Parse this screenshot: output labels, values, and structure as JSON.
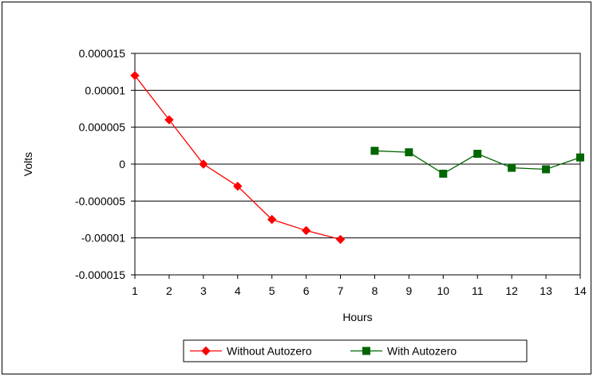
{
  "chart_data": {
    "type": "line",
    "title": "",
    "xlabel": "Hours",
    "ylabel": "Volts",
    "xlim": [
      1,
      14
    ],
    "ylim": [
      -1.5e-05,
      1.5e-05
    ],
    "x_ticks": [
      "1",
      "2",
      "3",
      "4",
      "5",
      "6",
      "7",
      "8",
      "9",
      "10",
      "11",
      "12",
      "13",
      "14"
    ],
    "y_ticks": [
      {
        "value": 1.5e-05,
        "label": "0.000015"
      },
      {
        "value": 1e-05,
        "label": "0.00001"
      },
      {
        "value": 5e-06,
        "label": "0.000005"
      },
      {
        "value": 0,
        "label": "0"
      },
      {
        "value": -5e-06,
        "label": "-0.000005"
      },
      {
        "value": -1e-05,
        "label": "-0.00001"
      },
      {
        "value": -1.5e-05,
        "label": "-0.000015"
      }
    ],
    "grid": "horizontal",
    "legend_position": "bottom",
    "series": [
      {
        "name": "Without Autozero",
        "color": "#ff0000",
        "marker": "diamond",
        "x": [
          1,
          2,
          3,
          4,
          5,
          6,
          7
        ],
        "y": [
          1.2e-05,
          6e-06,
          0.0,
          -3e-06,
          -7.5e-06,
          -9e-06,
          -1.02e-05
        ]
      },
      {
        "name": "With Autozero",
        "color": "#006600",
        "marker": "square",
        "x": [
          8,
          9,
          10,
          11,
          12,
          13,
          14
        ],
        "y": [
          1.8e-06,
          1.6e-06,
          -1.3e-06,
          1.4e-06,
          -5e-07,
          -7e-07,
          9e-07
        ]
      }
    ]
  }
}
